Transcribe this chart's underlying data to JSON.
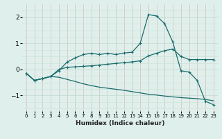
{
  "xlabel": "Humidex (Indice chaleur)",
  "x": [
    0,
    1,
    2,
    3,
    4,
    5,
    6,
    7,
    8,
    9,
    10,
    11,
    12,
    13,
    14,
    15,
    16,
    17,
    18,
    19,
    20,
    21,
    22,
    23
  ],
  "line1": [
    -0.15,
    -0.42,
    -0.35,
    -0.27,
    -0.05,
    0.28,
    0.44,
    0.57,
    0.62,
    0.57,
    0.62,
    0.57,
    0.63,
    0.66,
    1.0,
    2.1,
    2.05,
    1.75,
    1.05,
    -0.05,
    -0.1,
    -0.42,
    -1.22,
    -1.35
  ],
  "line2": [
    -0.15,
    -0.42,
    -0.35,
    -0.27,
    0.0,
    0.08,
    0.1,
    0.12,
    0.14,
    0.17,
    0.2,
    0.23,
    0.26,
    0.29,
    0.33,
    0.52,
    0.62,
    0.72,
    0.78,
    0.5,
    0.38,
    0.38,
    0.38,
    0.38
  ],
  "line3": [
    -0.15,
    -0.42,
    -0.35,
    -0.27,
    -0.3,
    -0.38,
    -0.46,
    -0.55,
    -0.62,
    -0.68,
    -0.72,
    -0.76,
    -0.8,
    -0.85,
    -0.9,
    -0.95,
    -0.98,
    -1.02,
    -1.05,
    -1.08,
    -1.1,
    -1.12,
    -1.15,
    -1.2
  ],
  "line_color": "#1a6b6b",
  "bg_color": "#dff0ec",
  "grid_h_color": "#c8e0d8",
  "grid_v_color": "#e0b8b8",
  "ylim": [
    -1.6,
    2.5
  ],
  "yticks": [
    -1,
    0,
    1,
    2
  ],
  "xlim": [
    -0.5,
    23.5
  ]
}
